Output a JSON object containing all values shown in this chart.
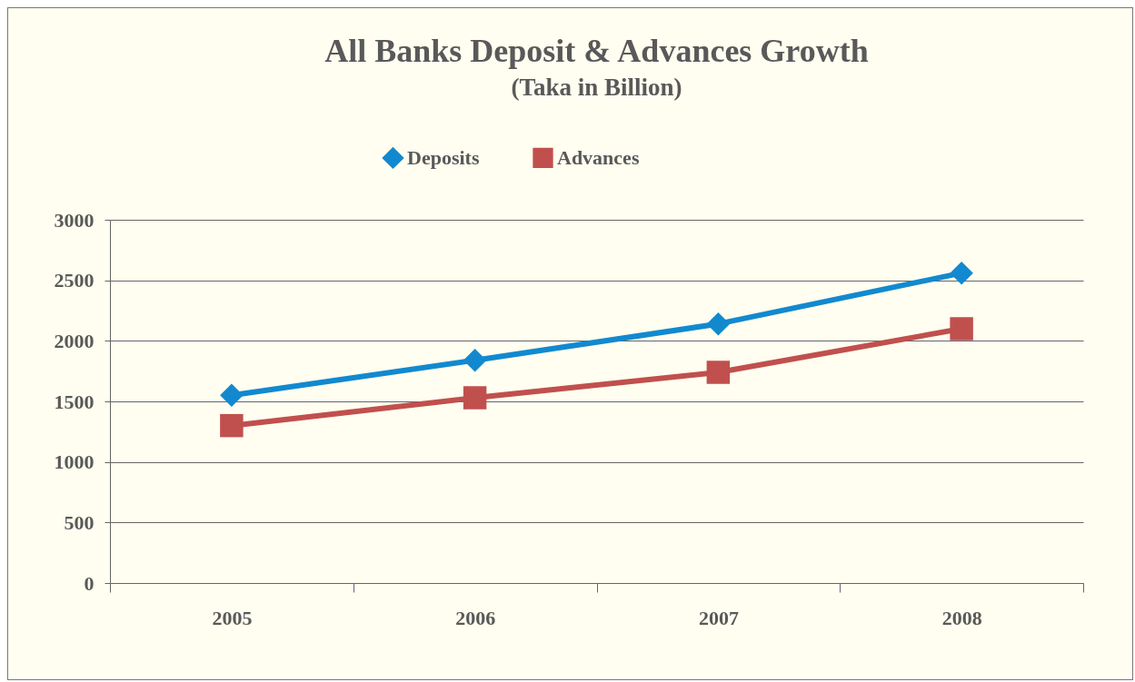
{
  "chart_data": {
    "type": "line",
    "title": "All Banks Deposit & Advances Growth",
    "subtitle": "(Taka in Billion)",
    "categories": [
      "2005",
      "2006",
      "2007",
      "2008"
    ],
    "series": [
      {
        "name": "Deposits",
        "color": "#1289cf",
        "marker": "diamond",
        "values": [
          1550,
          1840,
          2140,
          2560
        ]
      },
      {
        "name": "Advances",
        "color": "#c0504d",
        "marker": "square",
        "values": [
          1300,
          1530,
          1740,
          2100
        ]
      }
    ],
    "ylim": [
      0,
      3000
    ],
    "yticks": [
      0,
      500,
      1000,
      1500,
      2000,
      2500,
      3000
    ],
    "grid": "y",
    "legend": "top"
  }
}
